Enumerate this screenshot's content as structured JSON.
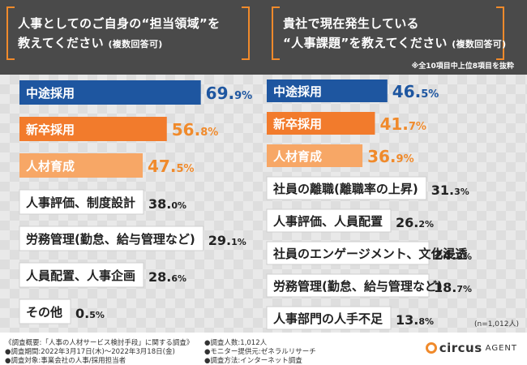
{
  "header": {
    "left_question_line1": "人事としてのご自身の“担当領域”を",
    "left_question_line2": "教えてください",
    "left_question_suffix": "(複数回答可)",
    "right_question_line1": "貴社で現在発生している",
    "right_question_line2": "“人事課題”を教えてください",
    "right_question_suffix": "(複数回答可)",
    "note": "※全10項目中上位8項目を抜粋"
  },
  "colors": {
    "header_bg": "#4a4a4a",
    "accent_orange": "#f08a2b",
    "rank1_blue": "#1e56a0",
    "rank2_orange": "#f27b2c",
    "rank3_orange": "#f7a766",
    "plain_bar": "#ffffff"
  },
  "chart_data": [
    {
      "type": "bar",
      "title": "人事としてのご自身の“担当領域”を教えてください(複数回答可)",
      "unit": "%",
      "categories": [
        "中途採用",
        "新卒採用",
        "人材育成",
        "人事評価、制度設計",
        "労務管理(勤怠、給与管理など)",
        "人員配置、人事企画",
        "その他"
      ],
      "values": [
        69.9,
        56.8,
        47.5,
        38.0,
        29.1,
        28.6,
        0.5
      ],
      "value_labels": [
        [
          "69.",
          "9",
          "%"
        ],
        [
          "56.",
          "8",
          "%"
        ],
        [
          "47.",
          "5",
          "%"
        ],
        [
          "38.",
          "0",
          "%"
        ],
        [
          "29.",
          "1",
          "%"
        ],
        [
          "28.",
          "6",
          "%"
        ],
        [
          "0.",
          "5",
          "%"
        ]
      ],
      "xlim": [
        0,
        100
      ]
    },
    {
      "type": "bar",
      "title": "貴社で現在発生している“人事課題”を教えてください(複数回答可)",
      "unit": "%",
      "categories": [
        "中途採用",
        "新卒採用",
        "人材育成",
        "社員の離職(離職率の上昇)",
        "人事評価、人員配置",
        "社員のエンゲージメント、文化浸透",
        "労務管理(勤怠、給与管理など)",
        "人事部門の人手不足"
      ],
      "values": [
        46.5,
        41.7,
        36.9,
        31.3,
        26.2,
        24.3,
        18.7,
        13.8
      ],
      "value_labels": [
        [
          "46.",
          "5",
          "%"
        ],
        [
          "41.",
          "7",
          "%"
        ],
        [
          "36.",
          "9",
          "%"
        ],
        [
          "31.",
          "3",
          "%"
        ],
        [
          "26.",
          "2",
          "%"
        ],
        [
          "24.",
          "3",
          "%"
        ],
        [
          "18.",
          "7",
          "%"
        ],
        [
          "13.",
          "8",
          "%"
        ]
      ],
      "xlim": [
        0,
        100
      ]
    }
  ],
  "sample_note": "(n=1,012人)",
  "footer": {
    "col1": [
      "《調査概要:「人事の人材サービス検討手段」に関する調査》",
      "●調査期間:2022年3月17日(木)〜2022年3月18日(金)",
      "●調査対象:事業会社の人事/採用担当者"
    ],
    "col2": [
      "●調査人数:1,012人",
      "●モニター提供元:ゼネラルリサーチ",
      "●調査方法:インターネット調査"
    ]
  },
  "logo": {
    "name": "circus",
    "suffix": "AGENT"
  }
}
